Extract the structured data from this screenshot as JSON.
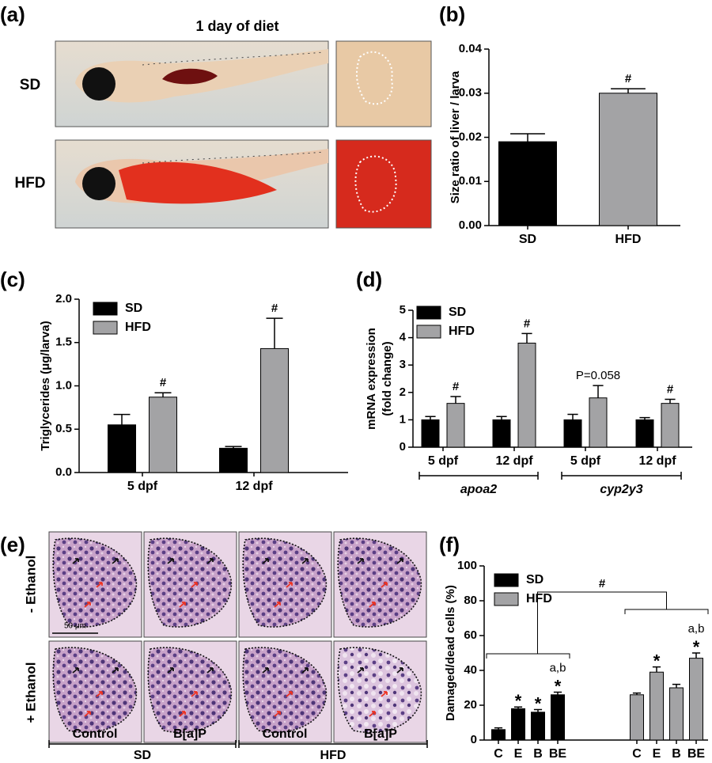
{
  "panel_a": {
    "label": "(a)",
    "title": "1 day of diet",
    "rows": [
      "SD",
      "HFD"
    ]
  },
  "chart_data": [
    {
      "type": "bar",
      "panel": "(b)",
      "ylabel": "Size ratio of liver / larva",
      "categories": [
        "SD",
        "HFD"
      ],
      "values": [
        0.019,
        0.03
      ],
      "errors": [
        0.0018,
        0.001
      ],
      "colors": [
        "#000000",
        "#a3a3a5"
      ],
      "annotations": [
        null,
        "#"
      ],
      "ylim": [
        0,
        0.04
      ],
      "yticks": [
        {
          "value": 0,
          "label": "0.00"
        },
        {
          "value": 0.01,
          "label": "0.01"
        },
        {
          "value": 0.02,
          "label": "0.02"
        },
        {
          "value": 0.03,
          "label": "0.03"
        },
        {
          "value": 0.04,
          "label": "0.04"
        }
      ]
    },
    {
      "type": "bar",
      "panel": "(c)",
      "ylabel": "Triglycerides (μg/larva)",
      "categories": [
        "5 dpf",
        "12 dpf"
      ],
      "series": [
        {
          "name": "SD",
          "color": "#000000",
          "values": [
            0.55,
            0.28
          ],
          "errors": [
            0.12,
            0.02
          ],
          "annotations": [
            null,
            null
          ]
        },
        {
          "name": "HFD",
          "color": "#a3a3a5",
          "values": [
            0.87,
            1.43
          ],
          "errors": [
            0.05,
            0.35
          ],
          "annotations": [
            "#",
            "#"
          ]
        }
      ],
      "ylim": [
        0,
        2.0
      ],
      "yticks": [
        {
          "value": 0,
          "label": "0.0"
        },
        0.5,
        {
          "value": 1,
          "label": "1.0"
        },
        1.5,
        {
          "value": 2,
          "label": "2.0"
        }
      ]
    },
    {
      "type": "bar",
      "panel": "(d)",
      "ylabel": [
        "mRNA expression",
        "(fold change)"
      ],
      "categories": [
        "5 dpf",
        "12 dpf",
        "5 dpf",
        "12 dpf"
      ],
      "groups": [
        {
          "label": "apoa2",
          "categories": [
            0,
            1
          ]
        },
        {
          "label": "cyp2y3",
          "categories": [
            2,
            3
          ]
        }
      ],
      "series": [
        {
          "name": "SD",
          "color": "#000000",
          "values": [
            1.0,
            1.0,
            1.0,
            1.0
          ],
          "errors": [
            0.12,
            0.12,
            0.2,
            0.08
          ],
          "annotations": [
            null,
            null,
            null,
            null
          ]
        },
        {
          "name": "HFD",
          "color": "#a3a3a5",
          "values": [
            1.6,
            3.8,
            1.8,
            1.6
          ],
          "errors": [
            0.25,
            0.35,
            0.45,
            0.15
          ],
          "annotations": [
            "#",
            "#",
            "P=0.058",
            "#"
          ]
        }
      ],
      "ylim": [
        0,
        5
      ],
      "yticks": [
        0,
        1,
        2,
        3,
        4,
        5
      ]
    },
    {
      "type": "bar",
      "panel": "(f)",
      "ylabel": "Damaged/dead cells (%)",
      "categories": [
        "C",
        "E",
        "B",
        "BE",
        "C",
        "E",
        "B",
        "BE"
      ],
      "series": [
        {
          "name": "SD",
          "color": "#000000",
          "values": [
            6,
            18,
            16,
            26,
            null,
            null,
            null,
            null
          ],
          "errors": [
            1,
            1,
            1.5,
            1.5,
            null,
            null,
            null,
            null
          ],
          "annotations": [
            null,
            "*",
            "*",
            "*",
            null,
            null,
            null,
            null
          ],
          "letters": [
            null,
            null,
            null,
            "a,b",
            null,
            null,
            null,
            null
          ]
        },
        {
          "name": "HFD",
          "color": "#a3a3a5",
          "values": [
            null,
            null,
            null,
            null,
            26,
            39,
            30,
            47
          ],
          "errors": [
            null,
            null,
            null,
            null,
            1,
            3,
            2,
            3
          ],
          "annotations": [
            null,
            null,
            null,
            null,
            null,
            "*",
            null,
            "*"
          ],
          "letters": [
            null,
            null,
            null,
            null,
            null,
            null,
            null,
            "a,b"
          ]
        }
      ],
      "comparison": {
        "label": "#",
        "groups": [
          [
            0,
            3
          ],
          [
            4,
            7
          ]
        ]
      },
      "ylim": [
        0,
        100
      ],
      "yticks": [
        0,
        20,
        40,
        60,
        80,
        100
      ]
    }
  ],
  "panel_e": {
    "label": "(e)",
    "rows": [
      "- Ethanol",
      "+ Ethanol"
    ],
    "columns": [
      "Control",
      "B[a]P",
      "Control",
      "B[a]P"
    ],
    "groups": [
      "SD",
      "HFD"
    ],
    "scale": "50 μm"
  }
}
